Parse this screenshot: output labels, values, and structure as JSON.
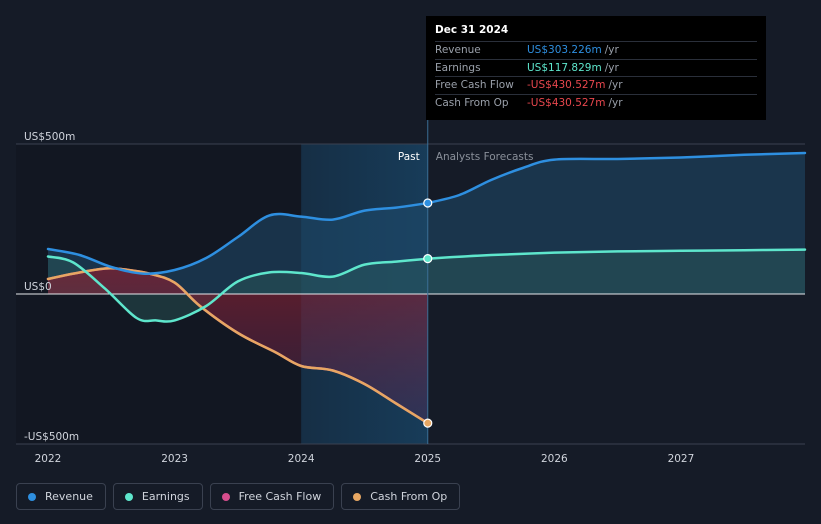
{
  "chart_data": {
    "type": "line",
    "y_axis": {
      "ylim": [
        -500,
        500
      ],
      "labels": [
        {
          "value": 500,
          "text": "US$500m"
        },
        {
          "value": 0,
          "text": "US$0"
        },
        {
          "value": -500,
          "text": "-US$500m"
        }
      ]
    },
    "x_axis": {
      "xlim": [
        2021.8,
        2027.98
      ],
      "ticks": [
        {
          "value": 2022,
          "text": "2022"
        },
        {
          "value": 2023,
          "text": "2023"
        },
        {
          "value": 2024,
          "text": "2024"
        },
        {
          "value": 2025,
          "text": "2025"
        },
        {
          "value": 2026,
          "text": "2026"
        },
        {
          "value": 2027,
          "text": "2027"
        }
      ]
    },
    "divider_x": 2025.0,
    "highlight_start_x": 2024.0,
    "past_label": "Past",
    "forecast_label": "Analysts Forecasts",
    "series": [
      {
        "name": "Revenue",
        "color": "#2e8fe0",
        "points": [
          [
            2022.0,
            150
          ],
          [
            2022.25,
            130
          ],
          [
            2022.5,
            90
          ],
          [
            2022.75,
            68
          ],
          [
            2023.0,
            80
          ],
          [
            2023.25,
            120
          ],
          [
            2023.5,
            190
          ],
          [
            2023.75,
            262
          ],
          [
            2024.0,
            258
          ],
          [
            2024.25,
            248
          ],
          [
            2024.5,
            278
          ],
          [
            2024.75,
            288
          ],
          [
            2025.0,
            303.226
          ]
        ],
        "forecast": [
          [
            2025.0,
            303.226
          ],
          [
            2025.25,
            330
          ],
          [
            2025.5,
            380
          ],
          [
            2025.75,
            420
          ],
          [
            2026.0,
            448
          ],
          [
            2026.5,
            450
          ],
          [
            2027.0,
            455
          ],
          [
            2027.5,
            464
          ],
          [
            2027.98,
            470
          ]
        ]
      },
      {
        "name": "Earnings",
        "color": "#5ee6cc",
        "points": [
          [
            2022.0,
            125
          ],
          [
            2022.2,
            105
          ],
          [
            2022.45,
            18
          ],
          [
            2022.7,
            -80
          ],
          [
            2022.85,
            -88
          ],
          [
            2023.0,
            -88
          ],
          [
            2023.25,
            -40
          ],
          [
            2023.5,
            42
          ],
          [
            2023.75,
            72
          ],
          [
            2024.0,
            70
          ],
          [
            2024.25,
            58
          ],
          [
            2024.5,
            98
          ],
          [
            2024.75,
            108
          ],
          [
            2025.0,
            117.829
          ]
        ],
        "forecast": [
          [
            2025.0,
            117.829
          ],
          [
            2025.5,
            130
          ],
          [
            2026.0,
            138
          ],
          [
            2026.5,
            142
          ],
          [
            2027.0,
            144
          ],
          [
            2027.5,
            146
          ],
          [
            2027.98,
            148
          ]
        ]
      },
      {
        "name": "Free Cash Flow",
        "color": "#d64d8d",
        "points": [
          [
            2022.0,
            50
          ],
          [
            2022.2,
            68
          ],
          [
            2022.45,
            85
          ],
          [
            2022.6,
            82
          ],
          [
            2022.8,
            68
          ],
          [
            2023.0,
            38
          ],
          [
            2023.2,
            -40
          ],
          [
            2023.5,
            -130
          ],
          [
            2023.8,
            -195
          ],
          [
            2024.0,
            -240
          ],
          [
            2024.25,
            -255
          ],
          [
            2024.5,
            -300
          ],
          [
            2024.75,
            -365
          ],
          [
            2025.0,
            -430.527
          ]
        ]
      },
      {
        "name": "Cash From Op",
        "color": "#e7a763",
        "points": [
          [
            2022.0,
            50
          ],
          [
            2022.2,
            68
          ],
          [
            2022.45,
            85
          ],
          [
            2022.6,
            82
          ],
          [
            2022.8,
            68
          ],
          [
            2023.0,
            38
          ],
          [
            2023.2,
            -40
          ],
          [
            2023.5,
            -130
          ],
          [
            2023.8,
            -195
          ],
          [
            2024.0,
            -240
          ],
          [
            2024.25,
            -255
          ],
          [
            2024.5,
            -300
          ],
          [
            2024.75,
            -365
          ],
          [
            2025.0,
            -430.527
          ]
        ]
      }
    ]
  },
  "tooltip": {
    "date": "Dec 31 2024",
    "rows": [
      {
        "label": "Revenue",
        "value": "US$303.226m",
        "unit": "/yr",
        "color": "#2e8fe0"
      },
      {
        "label": "Earnings",
        "value": "US$117.829m",
        "unit": "/yr",
        "color": "#5ee6cc"
      },
      {
        "label": "Free Cash Flow",
        "value": "-US$430.527m",
        "unit": "/yr",
        "color": "#e8474e"
      },
      {
        "label": "Cash From Op",
        "value": "-US$430.527m",
        "unit": "/yr",
        "color": "#e8474e"
      }
    ]
  },
  "legend": [
    {
      "label": "Revenue",
      "color": "#2e8fe0"
    },
    {
      "label": "Earnings",
      "color": "#5ee6cc"
    },
    {
      "label": "Free Cash Flow",
      "color": "#d64d8d"
    },
    {
      "label": "Cash From Op",
      "color": "#e7a763"
    }
  ]
}
